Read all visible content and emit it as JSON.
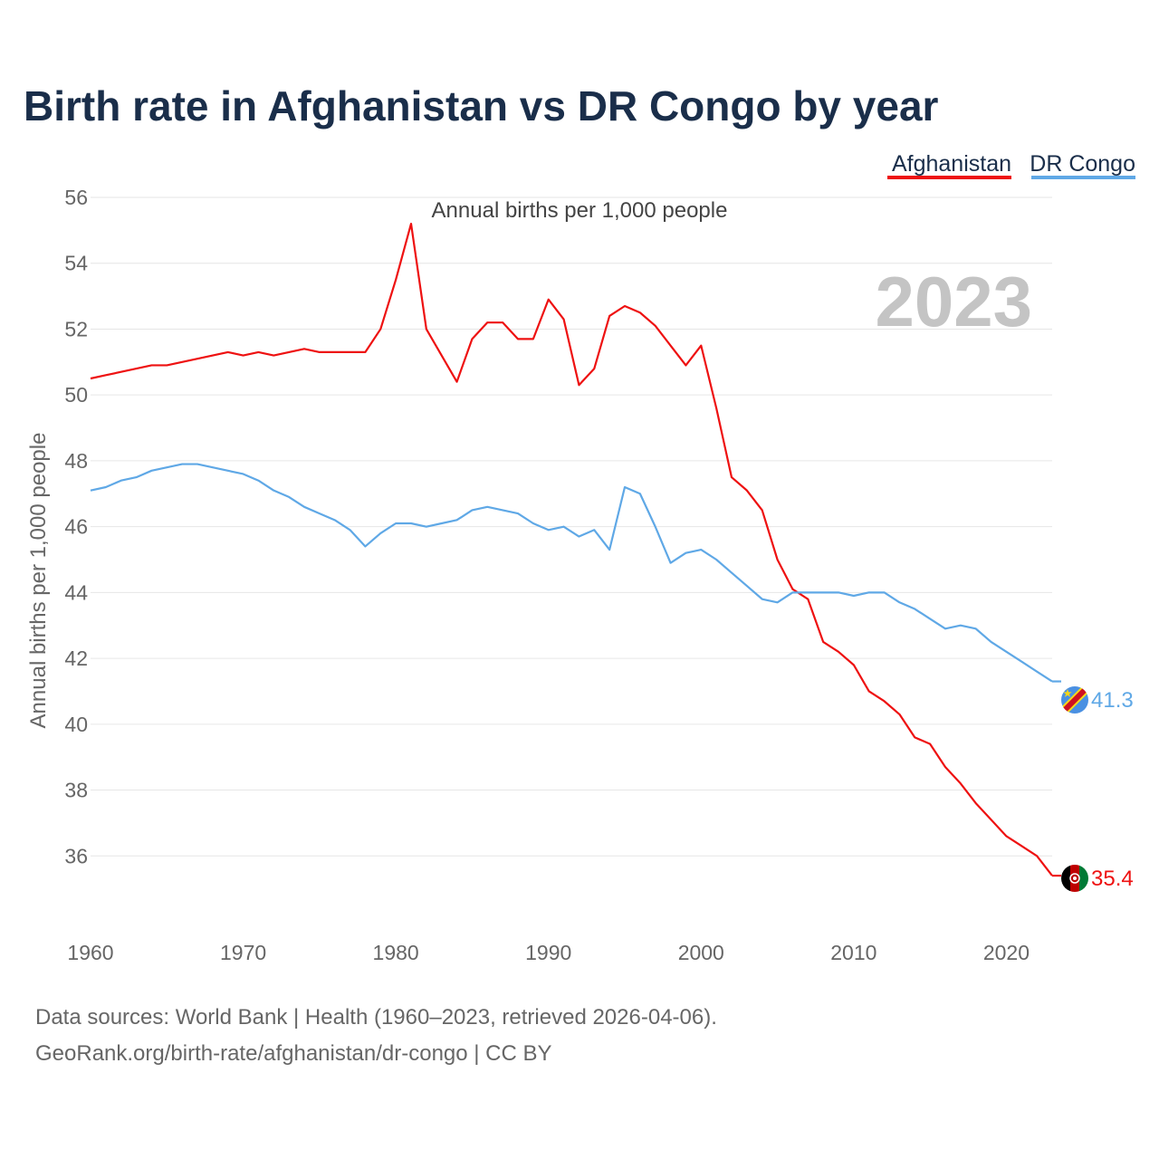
{
  "colors": {
    "afghanistan": "#ee1111",
    "dr_congo": "#5fa8e6",
    "title": "#1a2e4a",
    "grid": "#e6e6e6",
    "watermark": "#c4c4c4"
  },
  "source": {
    "line1": "Data sources: World Bank | Health (1960–2023, retrieved 2026-04-06).",
    "line2": "GeoRank.org/birth-rate/afghanistan/dr-congo | CC BY"
  },
  "chart_data": {
    "type": "line",
    "title": "Birth rate in Afghanistan vs DR Congo by year",
    "subtitle": "Annual births per 1,000 people",
    "ylabel": "Annual births per 1,000 people",
    "xlabel": "",
    "year_watermark": "2023",
    "xlim": [
      1960,
      2023
    ],
    "ylim": [
      34,
      56
    ],
    "yticks": [
      36,
      38,
      40,
      42,
      44,
      46,
      48,
      50,
      52,
      54,
      56
    ],
    "xticks": [
      1960,
      1970,
      1980,
      1990,
      2000,
      2010,
      2020
    ],
    "grid": true,
    "legend_position": "top-right",
    "x": [
      1960,
      1961,
      1962,
      1963,
      1964,
      1965,
      1966,
      1967,
      1968,
      1969,
      1970,
      1971,
      1972,
      1973,
      1974,
      1975,
      1976,
      1977,
      1978,
      1979,
      1980,
      1981,
      1982,
      1983,
      1984,
      1985,
      1986,
      1987,
      1988,
      1989,
      1990,
      1991,
      1992,
      1993,
      1994,
      1995,
      1996,
      1997,
      1998,
      1999,
      2000,
      2001,
      2002,
      2003,
      2004,
      2005,
      2006,
      2007,
      2008,
      2009,
      2010,
      2011,
      2012,
      2013,
      2014,
      2015,
      2016,
      2017,
      2018,
      2019,
      2020,
      2021,
      2022,
      2023
    ],
    "series": [
      {
        "name": "Afghanistan",
        "color_key": "afghanistan",
        "end_label": "35.4",
        "values": [
          50.5,
          50.6,
          50.7,
          50.8,
          50.9,
          50.9,
          51.0,
          51.1,
          51.2,
          51.3,
          51.2,
          51.3,
          51.2,
          51.3,
          51.4,
          51.3,
          51.3,
          51.3,
          51.3,
          52.0,
          53.5,
          55.2,
          52.0,
          51.2,
          50.4,
          51.7,
          52.2,
          52.2,
          51.7,
          51.7,
          52.9,
          52.3,
          50.3,
          50.8,
          52.4,
          52.7,
          52.5,
          52.1,
          51.5,
          50.9,
          51.5,
          49.6,
          47.5,
          47.1,
          46.5,
          45.0,
          44.1,
          43.8,
          42.5,
          42.2,
          41.8,
          41.0,
          40.7,
          40.3,
          39.6,
          39.4,
          38.7,
          38.2,
          37.6,
          37.1,
          36.6,
          36.3,
          36.0,
          35.4
        ]
      },
      {
        "name": "DR Congo",
        "color_key": "dr_congo",
        "end_label": "41.3",
        "values": [
          47.1,
          47.2,
          47.4,
          47.5,
          47.7,
          47.8,
          47.9,
          47.9,
          47.8,
          47.7,
          47.6,
          47.4,
          47.1,
          46.9,
          46.6,
          46.4,
          46.2,
          45.9,
          45.4,
          45.8,
          46.1,
          46.1,
          46.0,
          46.1,
          46.2,
          46.5,
          46.6,
          46.5,
          46.4,
          46.1,
          45.9,
          46.0,
          45.7,
          45.9,
          45.3,
          47.2,
          47.0,
          46.0,
          44.9,
          45.2,
          45.3,
          45.0,
          44.6,
          44.2,
          43.8,
          43.7,
          44.0,
          44.0,
          44.0,
          44.0,
          43.9,
          44.0,
          44.0,
          43.7,
          43.5,
          43.2,
          42.9,
          43.0,
          42.9,
          42.5,
          42.2,
          41.9,
          41.6,
          41.3
        ]
      }
    ]
  }
}
